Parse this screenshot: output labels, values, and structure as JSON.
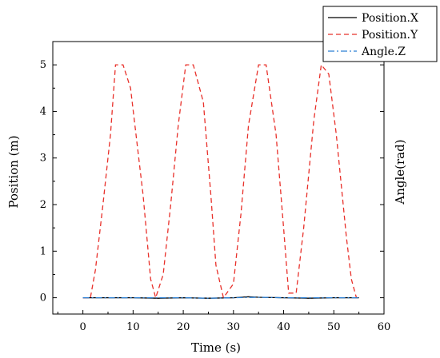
{
  "chart_data": {
    "type": "line",
    "xlabel": "Time (s)",
    "ylabel": "Position (m)",
    "ylabel_right": "Angle(rad)",
    "xlim": [
      -6,
      60
    ],
    "ylim": [
      -0.35,
      5.5
    ],
    "x_ticks": [
      0,
      10,
      20,
      30,
      40,
      50,
      60
    ],
    "y_ticks": [
      0,
      1,
      2,
      3,
      4,
      5
    ],
    "grid": false,
    "legend_position": "top-right",
    "series": [
      {
        "name": "Position.X",
        "color": "#000000",
        "style": "solid",
        "x": [
          0,
          5,
          10,
          15,
          20,
          25,
          30,
          33,
          35,
          40,
          45,
          50,
          55
        ],
        "y": [
          0.0,
          0.0,
          0.0,
          -0.01,
          0.0,
          -0.01,
          0.0,
          0.02,
          0.01,
          0.0,
          -0.01,
          0.0,
          0.0
        ]
      },
      {
        "name": "Position.Y",
        "color": "#e8302a",
        "style": "dashed",
        "x": [
          0,
          1.5,
          2.5,
          4,
          5.5,
          6.5,
          8,
          9.5,
          12,
          13.5,
          14.5,
          16,
          17.5,
          19,
          20.5,
          22,
          24,
          25.5,
          26.5,
          28,
          30,
          31.5,
          33,
          35,
          36.5,
          38.5,
          40,
          41,
          42.5,
          44,
          46,
          47.5,
          49,
          50.5,
          52.5,
          53.5,
          54.5
        ],
        "y": [
          0.0,
          0.0,
          0.6,
          2.0,
          3.5,
          5.0,
          5.0,
          4.5,
          2.2,
          0.4,
          0.0,
          0.5,
          2.0,
          3.7,
          5.0,
          5.0,
          4.2,
          2.2,
          0.7,
          0.0,
          0.3,
          1.8,
          3.7,
          5.0,
          5.0,
          3.5,
          1.5,
          0.1,
          0.1,
          1.5,
          3.8,
          5.0,
          4.8,
          3.5,
          1.3,
          0.4,
          0.0
        ]
      },
      {
        "name": "Angle.Z",
        "color": "#2a7fd4",
        "style": "dashdot",
        "x": [
          0,
          5,
          10,
          15,
          20,
          25,
          30,
          35,
          40,
          45,
          50,
          55
        ],
        "y": [
          0.0,
          0.0,
          0.0,
          0.0,
          0.0,
          -0.01,
          0.0,
          0.01,
          0.0,
          0.0,
          0.0,
          0.0
        ]
      }
    ]
  }
}
